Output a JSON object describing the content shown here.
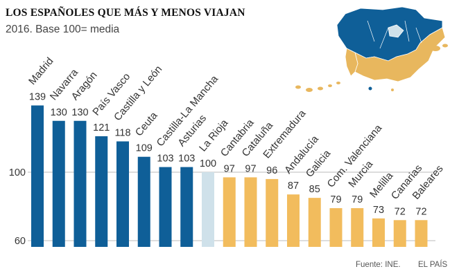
{
  "title": "LOS ESPAÑOLES QUE MÁS Y MENOS VIAJAN",
  "subtitle": "2016. Base 100= media",
  "source": "Fuente: INE.",
  "brand": "EL PAÍS",
  "colors": {
    "above": "#0f5f98",
    "average": "#cfe1ea",
    "below": "#f2bc5d",
    "grid": "#bbbbbb",
    "map_land_above": "#0f5f98",
    "map_land_below": "#e8b75e"
  },
  "chart_data": {
    "type": "bar",
    "title": "LOS ESPAÑOLES QUE MÁS Y MENOS VIAJAN",
    "subtitle": "2016. Base 100= media",
    "categories": [
      "Madrid",
      "Navarra",
      "Aragón",
      "País Vasco",
      "Castilla y León",
      "Ceuta",
      "Castilla-La Mancha",
      "Asturias",
      "La Rioja",
      "Cantabria",
      "Cataluña",
      "Extremadura",
      "Andalucía",
      "Galicia",
      "Com. Valenciana",
      "Murcia",
      "Melilla",
      "Canarias",
      "Baleares"
    ],
    "values": [
      139,
      130,
      130,
      121,
      118,
      109,
      103,
      103,
      100,
      97,
      97,
      96,
      87,
      85,
      79,
      79,
      73,
      72,
      72
    ],
    "y_ticks": [
      60,
      100
    ],
    "ylim": [
      60,
      139
    ],
    "grid": true
  }
}
